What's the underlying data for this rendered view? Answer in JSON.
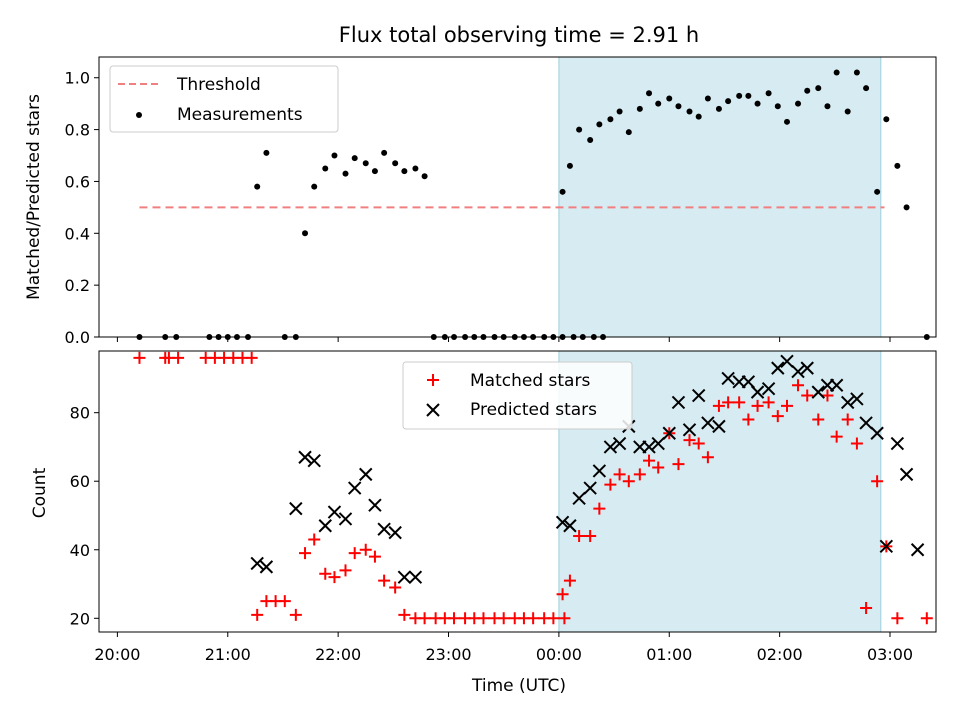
{
  "chart_data": [
    {
      "type": "scatter",
      "title": "Flux total observing time = 2.91 h",
      "xlabel": "",
      "ylabel": "Matched/Predicted stars",
      "xlim": [
        "19:50",
        "03:25"
      ],
      "ylim": [
        0,
        1.08
      ],
      "yticks": [
        "0.0",
        "0.2",
        "0.4",
        "0.6",
        "0.8",
        "1.0"
      ],
      "shaded_span": [
        "00:00",
        "02:55"
      ],
      "legend_position": "upper-left",
      "threshold": {
        "name": "Threshold",
        "value": 0.5,
        "x_range": [
          "20:12",
          "02:57"
        ],
        "color": "#f08080"
      },
      "series": [
        {
          "name": "Measurements",
          "color": "#000000",
          "points": [
            [
              "20:12",
              0.0
            ],
            [
              "20:26",
              0.0
            ],
            [
              "20:32",
              0.0
            ],
            [
              "20:50",
              0.0
            ],
            [
              "20:55",
              0.0
            ],
            [
              "21:00",
              0.0
            ],
            [
              "21:05",
              0.0
            ],
            [
              "21:11",
              0.0
            ],
            [
              "21:16",
              0.58
            ],
            [
              "21:21",
              0.71
            ],
            [
              "21:31",
              0.0
            ],
            [
              "21:37",
              0.0
            ],
            [
              "21:42",
              0.4
            ],
            [
              "21:47",
              0.58
            ],
            [
              "21:53",
              0.65
            ],
            [
              "21:58",
              0.7
            ],
            [
              "22:04",
              0.63
            ],
            [
              "22:09",
              0.69
            ],
            [
              "22:15",
              0.67
            ],
            [
              "22:20",
              0.64
            ],
            [
              "22:25",
              0.71
            ],
            [
              "22:31",
              0.67
            ],
            [
              "22:36",
              0.64
            ],
            [
              "22:42",
              0.65
            ],
            [
              "22:47",
              0.62
            ],
            [
              "22:52",
              0.0
            ],
            [
              "22:58",
              0.0
            ],
            [
              "23:03",
              0.0
            ],
            [
              "23:09",
              0.0
            ],
            [
              "23:14",
              0.0
            ],
            [
              "23:19",
              0.0
            ],
            [
              "23:25",
              0.0
            ],
            [
              "23:30",
              0.0
            ],
            [
              "23:36",
              0.0
            ],
            [
              "23:41",
              0.0
            ],
            [
              "23:46",
              0.0
            ],
            [
              "23:52",
              0.0
            ],
            [
              "23:57",
              0.0
            ],
            [
              "00:02",
              0.0
            ],
            [
              "00:08",
              0.0
            ],
            [
              "00:13",
              0.0
            ],
            [
              "00:19",
              0.0
            ],
            [
              "00:24",
              0.0
            ],
            [
              "00:02",
              0.56
            ],
            [
              "00:06",
              0.66
            ],
            [
              "00:11",
              0.8
            ],
            [
              "00:17",
              0.76
            ],
            [
              "00:22",
              0.82
            ],
            [
              "00:28",
              0.84
            ],
            [
              "00:33",
              0.87
            ],
            [
              "00:38",
              0.79
            ],
            [
              "00:44",
              0.88
            ],
            [
              "00:49",
              0.94
            ],
            [
              "00:54",
              0.9
            ],
            [
              "01:00",
              0.92
            ],
            [
              "01:05",
              0.89
            ],
            [
              "01:11",
              0.87
            ],
            [
              "01:16",
              0.85
            ],
            [
              "01:21",
              0.92
            ],
            [
              "01:27",
              0.88
            ],
            [
              "01:32",
              0.91
            ],
            [
              "01:38",
              0.93
            ],
            [
              "01:43",
              0.93
            ],
            [
              "01:48",
              0.9
            ],
            [
              "01:54",
              0.94
            ],
            [
              "01:59",
              0.89
            ],
            [
              "02:04",
              0.83
            ],
            [
              "02:10",
              0.9
            ],
            [
              "02:15",
              0.95
            ],
            [
              "02:21",
              0.96
            ],
            [
              "02:26",
              0.89
            ],
            [
              "02:31",
              1.02
            ],
            [
              "02:37",
              0.87
            ],
            [
              "02:42",
              1.02
            ],
            [
              "02:47",
              0.96
            ],
            [
              "02:53",
              0.56
            ],
            [
              "02:58",
              0.84
            ],
            [
              "03:04",
              0.66
            ],
            [
              "03:09",
              0.5
            ],
            [
              "03:20",
              0.0
            ]
          ]
        }
      ]
    },
    {
      "type": "scatter",
      "title": "",
      "xlabel": "Time (UTC)",
      "ylabel": "Count",
      "xlim": [
        "19:50",
        "03:25"
      ],
      "ylim": [
        16,
        98
      ],
      "xticks": [
        "20:00",
        "21:00",
        "22:00",
        "23:00",
        "00:00",
        "01:00",
        "02:00",
        "03:00"
      ],
      "yticks": [
        "20",
        "40",
        "60",
        "80"
      ],
      "shaded_span": [
        "00:00",
        "02:55"
      ],
      "legend_position": "upper-center",
      "series": [
        {
          "name": "Matched stars",
          "marker": "plus",
          "color": "#ff0000",
          "points": [
            [
              "20:12",
              96
            ],
            [
              "20:26",
              96
            ],
            [
              "20:28",
              96
            ],
            [
              "20:33",
              96
            ],
            [
              "20:48",
              96
            ],
            [
              "20:53",
              96
            ],
            [
              "20:58",
              96
            ],
            [
              "21:03",
              96
            ],
            [
              "21:08",
              96
            ],
            [
              "21:13",
              96
            ],
            [
              "21:16",
              21
            ],
            [
              "21:21",
              25
            ],
            [
              "21:26",
              25
            ],
            [
              "21:31",
              25
            ],
            [
              "21:37",
              21
            ],
            [
              "21:42",
              39
            ],
            [
              "21:47",
              43
            ],
            [
              "21:53",
              33
            ],
            [
              "21:58",
              32
            ],
            [
              "22:04",
              34
            ],
            [
              "22:09",
              39
            ],
            [
              "22:15",
              40
            ],
            [
              "22:20",
              38
            ],
            [
              "22:25",
              31
            ],
            [
              "22:31",
              29
            ],
            [
              "22:36",
              21
            ],
            [
              "22:42",
              20
            ],
            [
              "22:47",
              20
            ],
            [
              "22:53",
              20
            ],
            [
              "22:58",
              20
            ],
            [
              "23:03",
              20
            ],
            [
              "23:09",
              20
            ],
            [
              "23:14",
              20
            ],
            [
              "23:19",
              20
            ],
            [
              "23:25",
              20
            ],
            [
              "23:30",
              20
            ],
            [
              "23:36",
              20
            ],
            [
              "23:41",
              20
            ],
            [
              "23:46",
              20
            ],
            [
              "23:52",
              20
            ],
            [
              "23:57",
              20
            ],
            [
              "00:03",
              20
            ],
            [
              "00:02",
              27
            ],
            [
              "00:06",
              31
            ],
            [
              "00:11",
              44
            ],
            [
              "00:17",
              44
            ],
            [
              "00:22",
              52
            ],
            [
              "00:28",
              59
            ],
            [
              "00:33",
              62
            ],
            [
              "00:38",
              60
            ],
            [
              "00:44",
              62
            ],
            [
              "00:49",
              66
            ],
            [
              "00:54",
              64
            ],
            [
              "01:00",
              74
            ],
            [
              "01:05",
              65
            ],
            [
              "01:11",
              72
            ],
            [
              "01:16",
              71
            ],
            [
              "01:21",
              67
            ],
            [
              "01:27",
              82
            ],
            [
              "01:32",
              83
            ],
            [
              "01:38",
              83
            ],
            [
              "01:43",
              78
            ],
            [
              "01:48",
              82
            ],
            [
              "01:54",
              83
            ],
            [
              "01:59",
              79
            ],
            [
              "02:04",
              82
            ],
            [
              "02:10",
              88
            ],
            [
              "02:15",
              85
            ],
            [
              "02:21",
              78
            ],
            [
              "02:26",
              85
            ],
            [
              "02:31",
              73
            ],
            [
              "02:37",
              78
            ],
            [
              "02:42",
              71
            ],
            [
              "02:47",
              23
            ],
            [
              "02:53",
              60
            ],
            [
              "02:58",
              41
            ],
            [
              "03:04",
              20
            ],
            [
              "03:20",
              20
            ]
          ]
        },
        {
          "name": "Predicted stars",
          "marker": "x",
          "color": "#000000",
          "points": [
            [
              "21:16",
              36
            ],
            [
              "21:21",
              35
            ],
            [
              "21:37",
              52
            ],
            [
              "21:42",
              67
            ],
            [
              "21:47",
              66
            ],
            [
              "21:53",
              47
            ],
            [
              "21:58",
              51
            ],
            [
              "22:04",
              49
            ],
            [
              "22:09",
              58
            ],
            [
              "22:15",
              62
            ],
            [
              "22:20",
              53
            ],
            [
              "22:25",
              46
            ],
            [
              "22:31",
              45
            ],
            [
              "22:36",
              32
            ],
            [
              "22:42",
              32
            ],
            [
              "00:02",
              48
            ],
            [
              "00:06",
              47
            ],
            [
              "00:11",
              55
            ],
            [
              "00:17",
              58
            ],
            [
              "00:22",
              63
            ],
            [
              "00:28",
              70
            ],
            [
              "00:33",
              71
            ],
            [
              "00:38",
              76
            ],
            [
              "00:44",
              70
            ],
            [
              "00:49",
              70
            ],
            [
              "00:54",
              71
            ],
            [
              "01:00",
              74
            ],
            [
              "01:05",
              83
            ],
            [
              "01:11",
              75
            ],
            [
              "01:16",
              85
            ],
            [
              "01:21",
              77
            ],
            [
              "01:27",
              76
            ],
            [
              "01:32",
              90
            ],
            [
              "01:38",
              89
            ],
            [
              "01:43",
              89
            ],
            [
              "01:48",
              86
            ],
            [
              "01:54",
              87
            ],
            [
              "01:59",
              93
            ],
            [
              "02:04",
              95
            ],
            [
              "02:10",
              92
            ],
            [
              "02:15",
              93
            ],
            [
              "02:21",
              86
            ],
            [
              "02:26",
              88
            ],
            [
              "02:31",
              88
            ],
            [
              "02:37",
              83
            ],
            [
              "02:42",
              84
            ],
            [
              "02:47",
              77
            ],
            [
              "02:53",
              74
            ],
            [
              "02:58",
              41
            ],
            [
              "03:04",
              71
            ],
            [
              "03:09",
              62
            ],
            [
              "03:15",
              40
            ]
          ]
        }
      ]
    }
  ]
}
